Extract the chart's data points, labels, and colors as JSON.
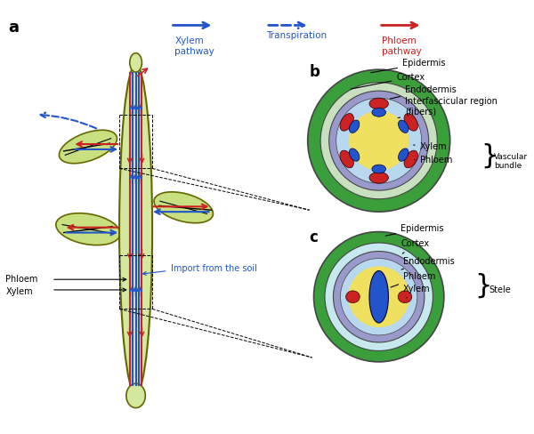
{
  "title_a": "a",
  "title_b": "b",
  "title_c": "c",
  "legend_xylem_label": "Xylem\npathway",
  "legend_transpiration_label": "Transpiration",
  "legend_phloem_label": "Phloem\npathway",
  "legend_xylem_color": "#2255cc",
  "legend_transpiration_color": "#2255cc",
  "legend_phloem_color": "#cc2222",
  "stem_fill": "#d4e8a0",
  "stem_outline": "#888800",
  "leaf_fill": "#c8e080",
  "leaf_outline": "#666600",
  "xylem_color": "#2255cc",
  "phloem_color": "#cc2222",
  "epidermis_color_b": "#3a9e3a",
  "cortex_color_b": "#c8dfc0",
  "endodermis_color_b": "#9999cc",
  "center_color_b": "#f0e060",
  "red_oval_color": "#cc2222",
  "blue_oval_color": "#2255cc",
  "epidermis_color_c": "#3a9e3a",
  "cortex_color_c": "#c8e8f0",
  "endodermis_color_c": "#9999cc",
  "center_color_c": "#f0e060",
  "phloem_c_color": "#2255cc",
  "xylem_c_color_red": "#cc2222",
  "background": "#ffffff",
  "label_color": "#000000",
  "import_soil_color": "#2255cc",
  "phloem_label_color": "#000000",
  "xylem_label_color": "#000000"
}
